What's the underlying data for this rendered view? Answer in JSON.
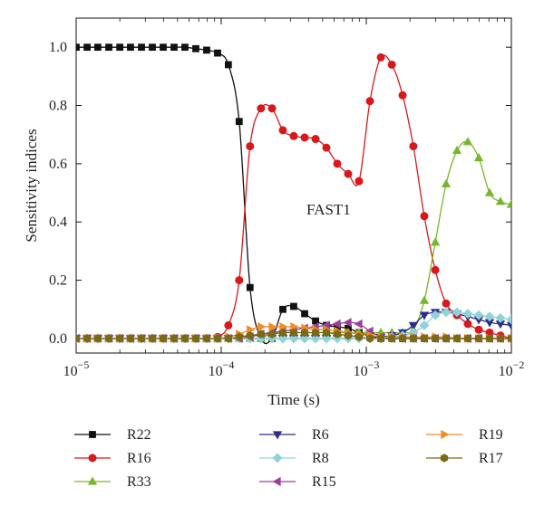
{
  "chart_data": {
    "type": "line",
    "xlabel": "Time (s)",
    "ylabel": "Sensitivity indices",
    "xscale": "log",
    "xlim": [
      1e-05,
      0.01
    ],
    "ylim": [
      -0.05,
      1.1
    ],
    "x_ticks": [
      1e-05,
      0.0001,
      0.001,
      0.01
    ],
    "x_tick_labels": [
      {
        "base": "10",
        "exp": "−5"
      },
      {
        "base": "10",
        "exp": "−4"
      },
      {
        "base": "10",
        "exp": "−3"
      },
      {
        "base": "10",
        "exp": "−2"
      }
    ],
    "y_ticks": [
      0.0,
      0.2,
      0.4,
      0.6,
      0.8,
      1.0
    ],
    "y_tick_labels": [
      "0.0",
      "0.2",
      "0.4",
      "0.6",
      "0.8",
      "1.0"
    ],
    "annotation": "FAST1",
    "legend_position": "bottom",
    "grid": false,
    "series": [
      {
        "name": "R22",
        "color": "#111111",
        "marker": "square",
        "x": [
          1e-05,
          1.19e-05,
          1.41e-05,
          1.68e-05,
          2e-05,
          2.37e-05,
          2.82e-05,
          3.35e-05,
          3.98e-05,
          4.73e-05,
          5.62e-05,
          6.68e-05,
          7.94e-05,
          9.44e-05,
          0.000112,
          0.000133,
          0.000158,
          0.000188,
          0.000224,
          0.000266,
          0.000316,
          0.000376,
          0.000447,
          0.000531,
          0.000631,
          0.00075,
          0.000891,
          0.00106,
          0.00126,
          0.0015,
          0.00178,
          0.00211,
          0.00251,
          0.00299,
          0.00355,
          0.00422,
          0.00501,
          0.00596,
          0.00708,
          0.00841,
          0.01
        ],
        "y": [
          1.0,
          1.0,
          1.0,
          1.0,
          1.0,
          1.0,
          1.0,
          1.0,
          1.0,
          1.0,
          1.0,
          0.995,
          0.99,
          0.98,
          0.94,
          0.745,
          0.175,
          0.0,
          0.0,
          0.1,
          0.11,
          0.085,
          0.06,
          0.045,
          0.04,
          0.035,
          0.02,
          0.01,
          0.0,
          0.0,
          0.0,
          0.0,
          0.0,
          0.0,
          0.0,
          0.0,
          0.0,
          0.0,
          0.0,
          0.0,
          0.0
        ]
      },
      {
        "name": "R16",
        "color": "#d7191c",
        "marker": "circle",
        "x": [
          1e-05,
          1.19e-05,
          1.41e-05,
          1.68e-05,
          2e-05,
          2.37e-05,
          2.82e-05,
          3.35e-05,
          3.98e-05,
          4.73e-05,
          5.62e-05,
          6.68e-05,
          7.94e-05,
          9.44e-05,
          0.000112,
          0.000133,
          0.000158,
          0.000188,
          0.000224,
          0.000266,
          0.000316,
          0.000376,
          0.000447,
          0.000531,
          0.000631,
          0.00075,
          0.000891,
          0.00106,
          0.00126,
          0.0015,
          0.00178,
          0.00211,
          0.00251,
          0.00299,
          0.00355,
          0.00422,
          0.00501,
          0.00596,
          0.00708,
          0.00841,
          0.01
        ],
        "y": [
          0.0,
          0.0,
          0.0,
          0.0,
          0.0,
          0.0,
          0.0,
          0.0,
          0.0,
          0.0,
          0.0,
          0.0,
          0.0,
          0.005,
          0.045,
          0.2,
          0.66,
          0.79,
          0.79,
          0.715,
          0.695,
          0.69,
          0.685,
          0.655,
          0.6,
          0.565,
          0.54,
          0.815,
          0.965,
          0.94,
          0.835,
          0.66,
          0.42,
          0.235,
          0.12,
          0.08,
          0.05,
          0.03,
          0.02,
          0.01,
          0.0
        ]
      },
      {
        "name": "R33",
        "color": "#77b82a",
        "marker": "triangle-up",
        "x": [
          1e-05,
          1.19e-05,
          1.41e-05,
          1.68e-05,
          2e-05,
          2.37e-05,
          2.82e-05,
          3.35e-05,
          3.98e-05,
          4.73e-05,
          5.62e-05,
          6.68e-05,
          7.94e-05,
          9.44e-05,
          0.000112,
          0.000133,
          0.000158,
          0.000188,
          0.000224,
          0.000266,
          0.000316,
          0.000376,
          0.000447,
          0.000531,
          0.000631,
          0.00075,
          0.000891,
          0.00106,
          0.00126,
          0.0015,
          0.00178,
          0.00211,
          0.00251,
          0.00299,
          0.00355,
          0.00422,
          0.00501,
          0.00596,
          0.00708,
          0.00841,
          0.01
        ],
        "y": [
          0.0,
          0.0,
          0.0,
          0.0,
          0.0,
          0.0,
          0.0,
          0.0,
          0.0,
          0.0,
          0.0,
          0.0,
          0.0,
          0.0,
          0.0,
          0.0,
          0.0,
          0.0,
          0.02,
          0.02,
          0.02,
          0.02,
          0.02,
          0.02,
          0.02,
          0.02,
          0.02,
          0.02,
          0.02,
          0.02,
          0.02,
          0.03,
          0.13,
          0.33,
          0.53,
          0.645,
          0.675,
          0.62,
          0.5,
          0.47,
          0.46
        ]
      },
      {
        "name": "R6",
        "color": "#2c2c8c",
        "marker": "triangle-down",
        "x": [
          1e-05,
          1.19e-05,
          1.41e-05,
          1.68e-05,
          2e-05,
          2.37e-05,
          2.82e-05,
          3.35e-05,
          3.98e-05,
          4.73e-05,
          5.62e-05,
          6.68e-05,
          7.94e-05,
          9.44e-05,
          0.000112,
          0.000133,
          0.000158,
          0.000188,
          0.000224,
          0.000266,
          0.000316,
          0.000376,
          0.000447,
          0.000531,
          0.000631,
          0.00075,
          0.000891,
          0.00106,
          0.00126,
          0.0015,
          0.00178,
          0.00211,
          0.00251,
          0.00299,
          0.00355,
          0.00422,
          0.00501,
          0.00596,
          0.00708,
          0.00841,
          0.01
        ],
        "y": [
          0.0,
          0.0,
          0.0,
          0.0,
          0.0,
          0.0,
          0.0,
          0.0,
          0.0,
          0.0,
          0.0,
          0.0,
          0.0,
          0.0,
          0.0,
          0.0,
          0.0,
          0.0,
          0.0,
          0.0,
          0.0,
          0.0,
          0.0,
          0.0,
          0.0,
          0.0,
          0.0,
          0.0,
          0.005,
          0.01,
          0.02,
          0.045,
          0.08,
          0.09,
          0.09,
          0.085,
          0.075,
          0.065,
          0.055,
          0.05,
          0.045
        ]
      },
      {
        "name": "R8",
        "color": "#8fd3d8",
        "marker": "diamond",
        "x": [
          1e-05,
          1.19e-05,
          1.41e-05,
          1.68e-05,
          2e-05,
          2.37e-05,
          2.82e-05,
          3.35e-05,
          3.98e-05,
          4.73e-05,
          5.62e-05,
          6.68e-05,
          7.94e-05,
          9.44e-05,
          0.000112,
          0.000133,
          0.000158,
          0.000188,
          0.000224,
          0.000266,
          0.000316,
          0.000376,
          0.000447,
          0.000531,
          0.000631,
          0.00075,
          0.000891,
          0.00106,
          0.00126,
          0.0015,
          0.00178,
          0.00211,
          0.00251,
          0.00299,
          0.00355,
          0.00422,
          0.00501,
          0.00596,
          0.00708,
          0.00841,
          0.01
        ],
        "y": [
          0.0,
          0.0,
          0.0,
          0.0,
          0.0,
          0.0,
          0.0,
          0.0,
          0.0,
          0.0,
          0.0,
          0.0,
          0.0,
          0.0,
          0.0,
          0.0,
          0.0,
          0.0,
          0.0,
          0.0,
          0.0,
          0.0,
          0.0,
          0.0,
          0.0,
          0.0,
          0.0,
          0.0,
          0.0,
          0.005,
          0.01,
          0.02,
          0.045,
          0.08,
          0.09,
          0.09,
          0.085,
          0.08,
          0.075,
          0.07,
          0.065
        ]
      },
      {
        "name": "R15",
        "color": "#9b3f9b",
        "marker": "triangle-left",
        "x": [
          1e-05,
          1.19e-05,
          1.41e-05,
          1.68e-05,
          2e-05,
          2.37e-05,
          2.82e-05,
          3.35e-05,
          3.98e-05,
          4.73e-05,
          5.62e-05,
          6.68e-05,
          7.94e-05,
          9.44e-05,
          0.000112,
          0.000133,
          0.000158,
          0.000188,
          0.000224,
          0.000266,
          0.000316,
          0.000376,
          0.000447,
          0.000531,
          0.000631,
          0.00075,
          0.000891,
          0.00106,
          0.00126,
          0.0015,
          0.00178,
          0.00211,
          0.00251,
          0.00299,
          0.00355,
          0.00422,
          0.00501,
          0.00596,
          0.00708,
          0.00841,
          0.01
        ],
        "y": [
          0.0,
          0.0,
          0.0,
          0.0,
          0.0,
          0.0,
          0.0,
          0.0,
          0.0,
          0.0,
          0.0,
          0.0,
          0.0,
          0.0,
          0.0,
          0.0,
          0.005,
          0.015,
          0.02,
          0.025,
          0.03,
          0.035,
          0.04,
          0.045,
          0.05,
          0.055,
          0.05,
          0.025,
          0.005,
          0.0,
          0.0,
          0.0,
          0.0,
          0.0,
          0.0,
          0.0,
          0.0,
          0.0,
          0.0,
          0.0,
          0.0
        ]
      },
      {
        "name": "R19",
        "color": "#f28c28",
        "marker": "triangle-right",
        "x": [
          1e-05,
          1.19e-05,
          1.41e-05,
          1.68e-05,
          2e-05,
          2.37e-05,
          2.82e-05,
          3.35e-05,
          3.98e-05,
          4.73e-05,
          5.62e-05,
          6.68e-05,
          7.94e-05,
          9.44e-05,
          0.000112,
          0.000133,
          0.000158,
          0.000188,
          0.000224,
          0.000266,
          0.000316,
          0.000376,
          0.000447,
          0.000531,
          0.000631,
          0.00075,
          0.000891,
          0.00106,
          0.00126,
          0.0015,
          0.00178,
          0.00211,
          0.00251,
          0.00299,
          0.00355,
          0.00422,
          0.00501,
          0.00596,
          0.00708,
          0.00841,
          0.01
        ],
        "y": [
          0.0,
          0.0,
          0.0,
          0.0,
          0.0,
          0.0,
          0.0,
          0.0,
          0.0,
          0.0,
          0.0,
          0.0,
          0.0,
          0.0,
          0.005,
          0.015,
          0.03,
          0.04,
          0.04,
          0.04,
          0.04,
          0.035,
          0.03,
          0.03,
          0.025,
          0.02,
          0.015,
          0.01,
          0.005,
          0.005,
          0.005,
          0.005,
          0.005,
          0.005,
          0.005,
          0.0,
          0.0,
          0.0,
          0.0,
          0.0,
          0.0
        ]
      },
      {
        "name": "R17",
        "color": "#7a6a16",
        "marker": "hexagon",
        "x": [
          1e-05,
          1.19e-05,
          1.41e-05,
          1.68e-05,
          2e-05,
          2.37e-05,
          2.82e-05,
          3.35e-05,
          3.98e-05,
          4.73e-05,
          5.62e-05,
          6.68e-05,
          7.94e-05,
          9.44e-05,
          0.000112,
          0.000133,
          0.000158,
          0.000188,
          0.000224,
          0.000266,
          0.000316,
          0.000376,
          0.000447,
          0.000531,
          0.000631,
          0.00075,
          0.000891,
          0.00106,
          0.00126,
          0.0015,
          0.00178,
          0.00211,
          0.00251,
          0.00299,
          0.00355,
          0.00422,
          0.00501,
          0.00596,
          0.00708,
          0.00841,
          0.01
        ],
        "y": [
          0.0,
          0.0,
          0.0,
          0.0,
          0.0,
          0.0,
          0.0,
          0.0,
          0.0,
          0.0,
          0.0,
          0.0,
          0.0,
          0.0,
          0.0,
          0.005,
          0.01,
          0.015,
          0.015,
          0.02,
          0.02,
          0.02,
          0.02,
          0.02,
          0.015,
          0.01,
          0.005,
          0.0,
          0.0,
          0.0,
          0.0,
          0.0,
          0.0,
          0.0,
          0.0,
          0.0,
          0.0,
          0.0,
          0.0,
          0.0,
          0.0
        ]
      }
    ]
  }
}
